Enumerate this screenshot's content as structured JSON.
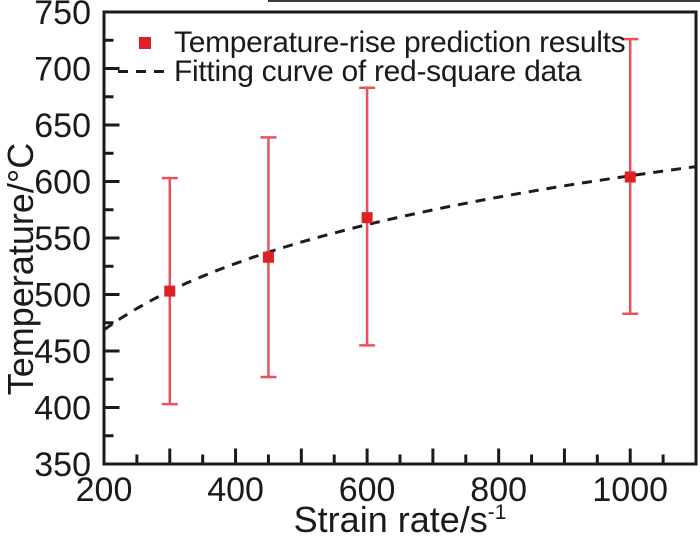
{
  "figure": {
    "legend": [
      {
        "label": "Temperature-rise prediction results",
        "marker": "red-square"
      },
      {
        "label": "Fitting curve of red-square data",
        "marker": "black-dashed-line"
      }
    ],
    "xlabel_base": "Strain rate/s",
    "xlabel_sup": "-1",
    "ylabel": "Temperature/°C"
  },
  "chart_data": {
    "type": "scatter",
    "title": "",
    "xlabel": "Strain rate/s^-1",
    "ylabel": "Temperature/°C",
    "xlim": [
      200,
      1100
    ],
    "ylim": [
      350,
      750
    ],
    "x_tick_labels": [
      200,
      400,
      600,
      800,
      1000
    ],
    "x_major_tick_step": 100,
    "x_minor_tick_step": 50,
    "y_tick_labels": [
      350,
      400,
      450,
      500,
      550,
      600,
      650,
      700,
      750
    ],
    "y_major_tick_step": 50,
    "y_minor_tick_step": 25,
    "grid": false,
    "legend_position": "upper-left-inside",
    "frame_color": "#1a1a1a",
    "series": [
      {
        "name": "Temperature-rise prediction results",
        "type": "scatter",
        "marker": "square",
        "marker_size": 11,
        "marker_color": "#df2127",
        "error_bar_color": "#e85259",
        "points": [
          {
            "x": 300,
            "y": 503,
            "y_low": 403,
            "y_high": 603
          },
          {
            "x": 450,
            "y": 533,
            "y_low": 427,
            "y_high": 639
          },
          {
            "x": 600,
            "y": 568,
            "y_low": 455,
            "y_high": 683
          },
          {
            "x": 1000,
            "y": 604,
            "y_low": 483,
            "y_high": 726
          }
        ]
      },
      {
        "name": "Fitting curve of red-square data",
        "type": "line",
        "style": "dashed",
        "color": "#1c1c1c",
        "fit": "logarithmic",
        "equation": "T = 20 + 84.7*ln(strain_rate)",
        "params": {
          "a": 20,
          "b": 84.7
        },
        "x_range": [
          200,
          1100
        ]
      }
    ]
  }
}
